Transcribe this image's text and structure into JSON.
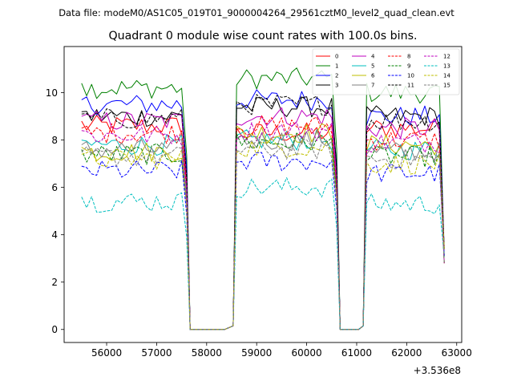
{
  "figure": {
    "suptitle": "Data file: modeM0/AS1C05_019T01_9000004264_29561cztM0_level2_quad_clean.evt"
  },
  "chart_data": {
    "type": "line",
    "title": "Quadrant 0 module wise count rates with 100.0s bins.",
    "xlabel": "",
    "ylabel": "",
    "x_offset_label": "+3.536e8",
    "xlim": [
      55150,
      63100
    ],
    "ylim": [
      -0.55,
      11.95
    ],
    "xticks": [
      56000,
      57000,
      58000,
      59000,
      60000,
      61000,
      62000,
      63000
    ],
    "yticks": [
      0,
      2,
      4,
      6,
      8,
      10
    ],
    "legend": {
      "placement": "top-right",
      "columns": 4
    },
    "segments": [
      {
        "start": 55500,
        "end": 57600,
        "count": 22
      },
      {
        "start": 58600,
        "end": 60600,
        "count": 21
      },
      {
        "start": 61200,
        "end": 62750,
        "count": 17
      }
    ],
    "gap_level": 0,
    "series": [
      {
        "name": "0",
        "color": "#ff0000",
        "dash": "solid",
        "levels": [
          8.6,
          8.3,
          8.5
        ]
      },
      {
        "name": "1",
        "color": "#008000",
        "dash": "solid",
        "levels": [
          10.2,
          10.6,
          10.0
        ]
      },
      {
        "name": "2",
        "color": "#0000ff",
        "dash": "solid",
        "levels": [
          9.5,
          9.7,
          9.0
        ]
      },
      {
        "name": "3",
        "color": "#000000",
        "dash": "solid",
        "levels": [
          9.0,
          9.4,
          9.0
        ]
      },
      {
        "name": "4",
        "color": "#bf00bf",
        "dash": "solid",
        "levels": [
          8.8,
          9.0,
          8.5
        ]
      },
      {
        "name": "5",
        "color": "#00bfbf",
        "dash": "solid",
        "levels": [
          7.8,
          8.0,
          7.6
        ]
      },
      {
        "name": "6",
        "color": "#bfbf00",
        "dash": "solid",
        "levels": [
          7.5,
          8.3,
          7.8
        ]
      },
      {
        "name": "7",
        "color": "#808080",
        "dash": "solid",
        "levels": [
          7.6,
          8.0,
          7.5
        ]
      },
      {
        "name": "8",
        "color": "#ff0000",
        "dash": "dashed",
        "levels": [
          8.3,
          8.6,
          8.0
        ]
      },
      {
        "name": "9",
        "color": "#008000",
        "dash": "dashed",
        "levels": [
          7.4,
          7.9,
          7.3
        ]
      },
      {
        "name": "10",
        "color": "#0000ff",
        "dash": "dashed",
        "levels": [
          6.7,
          7.1,
          6.6
        ]
      },
      {
        "name": "11",
        "color": "#000000",
        "dash": "dashed",
        "levels": [
          8.9,
          9.5,
          8.8
        ]
      },
      {
        "name": "12",
        "color": "#bf00bf",
        "dash": "dashed",
        "levels": [
          8.2,
          8.4,
          7.9
        ]
      },
      {
        "name": "13",
        "color": "#00bfbf",
        "dash": "dashed",
        "levels": [
          5.4,
          6.0,
          5.3
        ]
      },
      {
        "name": "14",
        "color": "#bfbf00",
        "dash": "dashed",
        "levels": [
          7.2,
          7.7,
          7.0
        ]
      },
      {
        "name": "15",
        "color": "#808080",
        "dash": "dashed",
        "levels": [
          7.3,
          7.6,
          7.2
        ]
      }
    ]
  }
}
